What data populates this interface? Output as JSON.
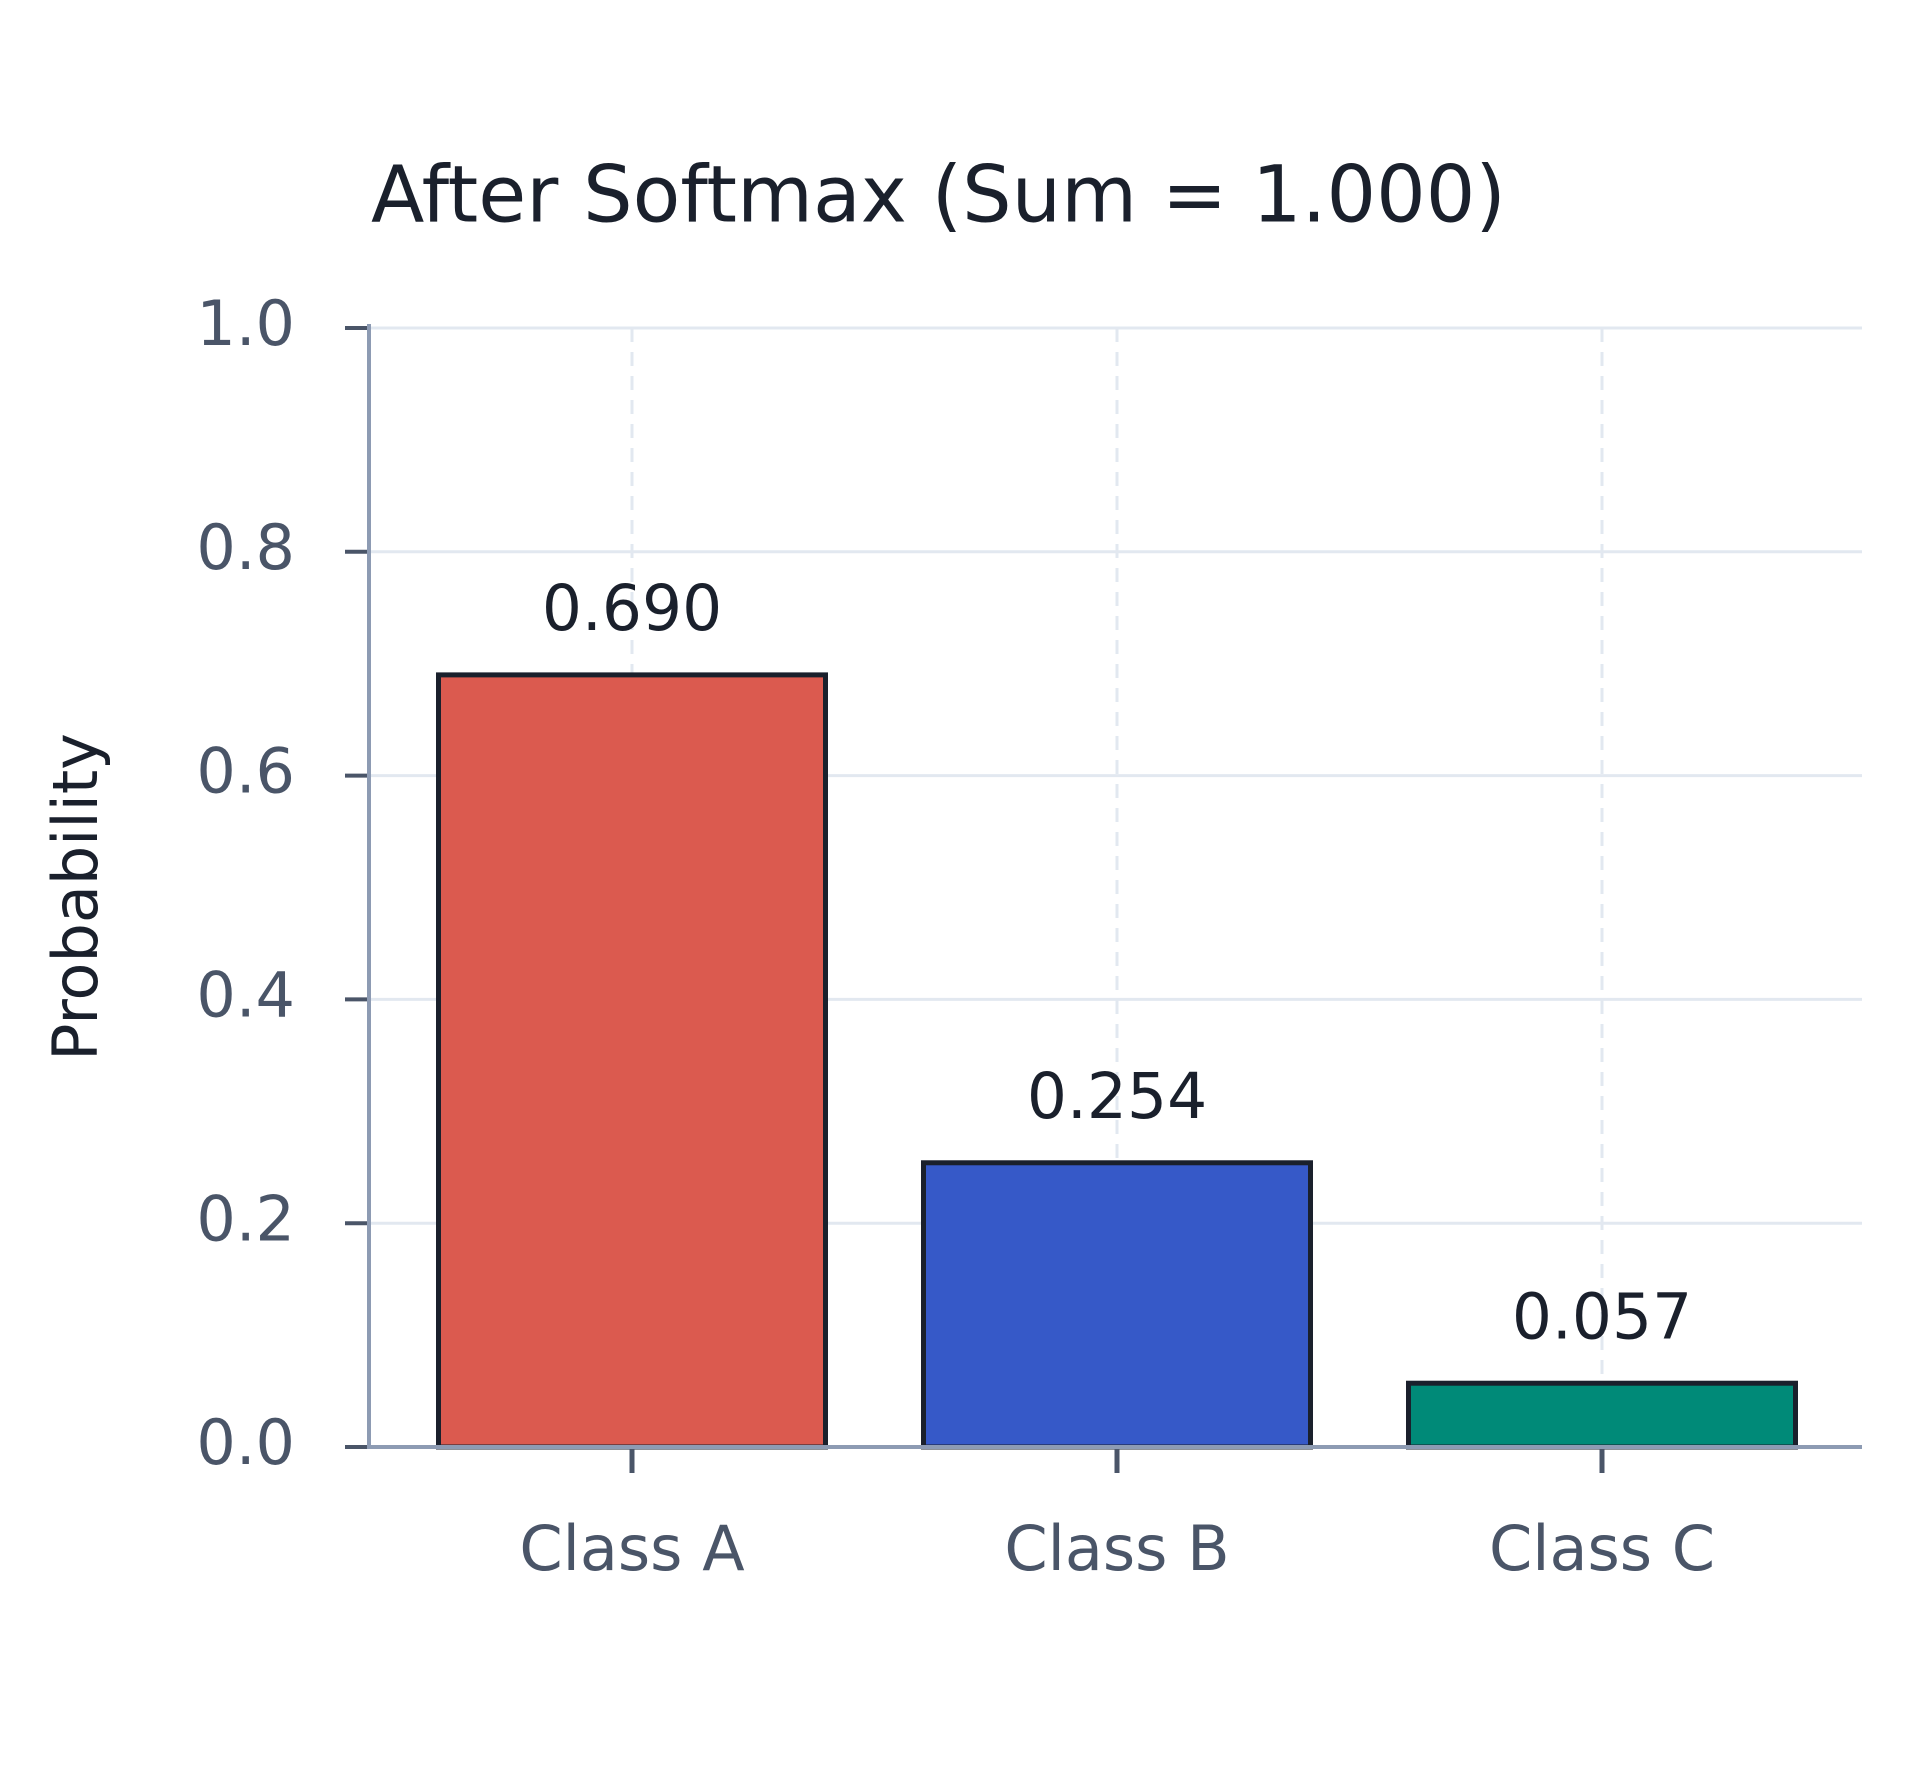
{
  "chart_data": {
    "type": "bar",
    "title": "After Softmax (Sum = 1.000)",
    "y_label": "Probability",
    "categories": [
      "Class A",
      "Class B",
      "Class C"
    ],
    "values": [
      0.69,
      0.254,
      0.057
    ],
    "value_labels": [
      "0.690",
      "0.254",
      "0.057"
    ],
    "colors": [
      "#db5a4f",
      "#3659c8",
      "#008a78"
    ],
    "ylim": [
      0,
      1
    ],
    "yticks": [
      {
        "value": 0,
        "label": "0.0"
      },
      0.2,
      0.4,
      0.6,
      0.8,
      {
        "value": 1,
        "label": "1.0"
      }
    ],
    "grid": true
  }
}
